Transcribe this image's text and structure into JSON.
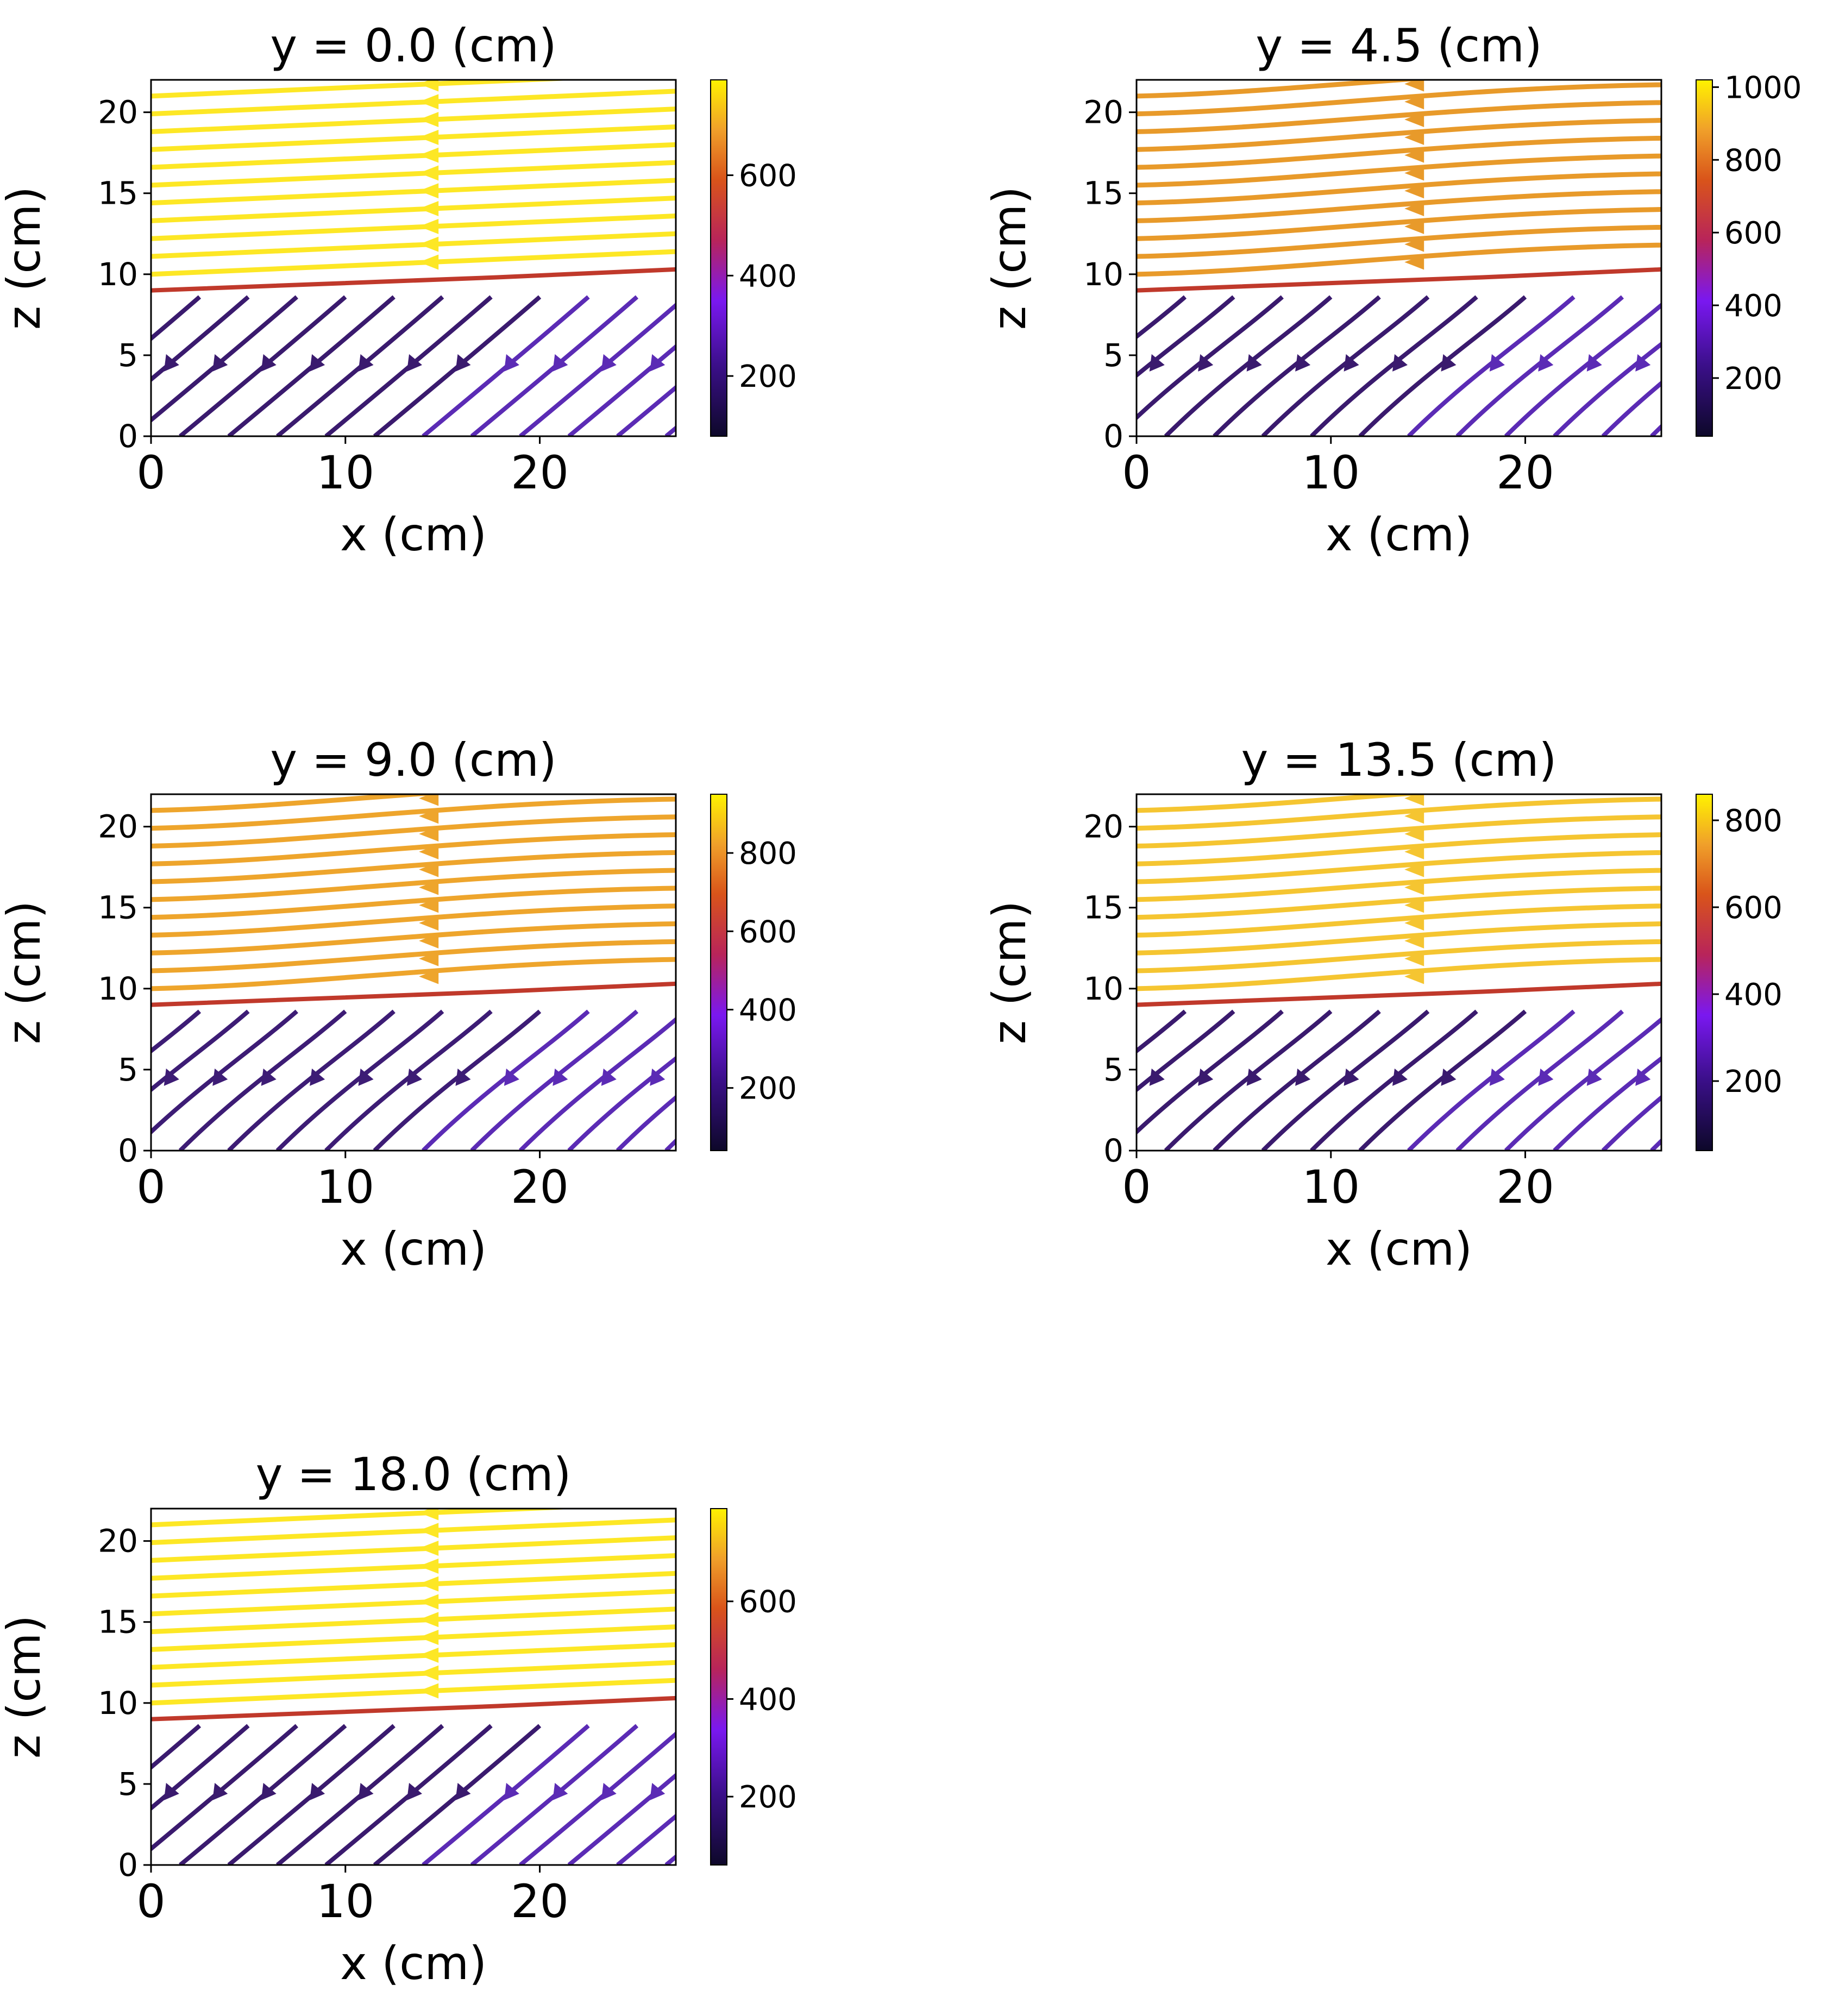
{
  "chart_data": [
    {
      "type": "streamplot",
      "title": "y = 0.0 (cm)",
      "xlabel": "x (cm)",
      "ylabel": "z (cm)",
      "xlim": [
        0,
        27
      ],
      "ylim": [
        0,
        22
      ],
      "xticks": [
        "0",
        "10",
        "20"
      ],
      "yticks": [
        "0",
        "5",
        "10",
        "15",
        "20"
      ],
      "colorbar": {
        "range": [
          80,
          790
        ],
        "ticks": [
          "200",
          "400",
          "600"
        ],
        "tick_values": [
          200,
          400,
          600
        ]
      },
      "interface_z": 9,
      "lower_rise": 0,
      "style": "flat",
      "colors": {
        "upper": "#fde725",
        "lower": "#3a1a6e",
        "interface": "#c0392b"
      }
    },
    {
      "type": "streamplot",
      "title": "y = 4.5 (cm)",
      "xlabel": "x (cm)",
      "ylabel": "z (cm)",
      "xlim": [
        0,
        27
      ],
      "ylim": [
        0,
        22
      ],
      "xticks": [
        "0",
        "10",
        "20"
      ],
      "yticks": [
        "0",
        "5",
        "10",
        "15",
        "20"
      ],
      "colorbar": {
        "range": [
          40,
          1020
        ],
        "ticks": [
          "200",
          "400",
          "600",
          "800",
          "1000"
        ],
        "tick_values": [
          200,
          400,
          600,
          800,
          1000
        ]
      },
      "interface_z": 9,
      "lower_rise": 2,
      "style": "vortex",
      "colors": {
        "upper": "#e89a2a",
        "lower": "#3a1a6e",
        "interface": "#c0392b"
      }
    },
    {
      "type": "streamplot",
      "title": "y = 9.0 (cm)",
      "xlabel": "x (cm)",
      "ylabel": "z (cm)",
      "xlim": [
        0,
        27
      ],
      "ylim": [
        0,
        22
      ],
      "xticks": [
        "0",
        "10",
        "20"
      ],
      "yticks": [
        "0",
        "5",
        "10",
        "15",
        "20"
      ],
      "colorbar": {
        "range": [
          40,
          950
        ],
        "ticks": [
          "200",
          "400",
          "600",
          "800"
        ],
        "tick_values": [
          200,
          400,
          600,
          800
        ]
      },
      "interface_z": 9,
      "lower_rise": 2,
      "style": "vortex",
      "colors": {
        "upper": "#eea52c",
        "lower": "#3d1c75",
        "interface": "#c0392b"
      }
    },
    {
      "type": "streamplot",
      "title": "y = 13.5 (cm)",
      "xlabel": "x (cm)",
      "ylabel": "z (cm)",
      "xlim": [
        0,
        27
      ],
      "ylim": [
        0,
        22
      ],
      "xticks": [
        "0",
        "10",
        "20"
      ],
      "yticks": [
        "0",
        "5",
        "10",
        "15",
        "20"
      ],
      "colorbar": {
        "range": [
          40,
          860
        ],
        "ticks": [
          "200",
          "400",
          "600",
          "800"
        ],
        "tick_values": [
          200,
          400,
          600,
          800
        ]
      },
      "interface_z": 9,
      "lower_rise": 2,
      "style": "vortex",
      "colors": {
        "upper": "#f5c531",
        "lower": "#3a1a6e",
        "interface": "#c0392b"
      }
    },
    {
      "type": "streamplot",
      "title": "y = 18.0 (cm)",
      "xlabel": "x (cm)",
      "ylabel": "z (cm)",
      "xlim": [
        0,
        27
      ],
      "ylim": [
        0,
        22
      ],
      "xticks": [
        "0",
        "10",
        "20"
      ],
      "yticks": [
        "0",
        "5",
        "10",
        "15",
        "20"
      ],
      "colorbar": {
        "range": [
          60,
          790
        ],
        "ticks": [
          "200",
          "400",
          "600"
        ],
        "tick_values": [
          200,
          400,
          600
        ]
      },
      "interface_z": 9,
      "lower_rise": 0,
      "style": "flat",
      "colors": {
        "upper": "#fde725",
        "lower": "#3a1a6e",
        "interface": "#c0392b"
      }
    }
  ]
}
